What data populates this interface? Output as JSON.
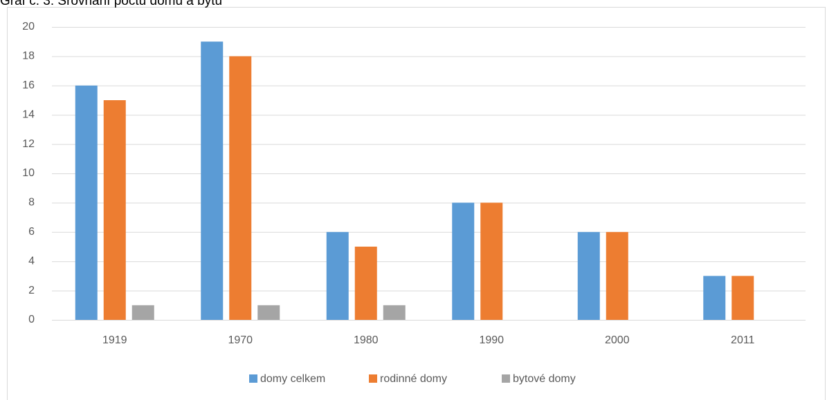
{
  "chart_data": {
    "type": "bar",
    "title": "Graf č. 3: Srovnání počtu domů a bytů",
    "categories": [
      "1919",
      "1970",
      "1980",
      "1990",
      "2000",
      "2011"
    ],
    "series": [
      {
        "name": "domy celkem",
        "color": "#5b9bd5",
        "values": [
          16,
          19,
          6,
          8,
          6,
          3
        ]
      },
      {
        "name": "rodinné domy",
        "color": "#ed7d31",
        "values": [
          15,
          18,
          5,
          8,
          6,
          3
        ]
      },
      {
        "name": "bytové domy",
        "color": "#a5a5a5",
        "values": [
          1,
          1,
          1,
          0,
          0,
          0
        ]
      }
    ],
    "ylim": [
      0,
      20
    ],
    "yticks": [
      0,
      2,
      4,
      6,
      8,
      10,
      12,
      14,
      16,
      18,
      20
    ],
    "grid": true,
    "legend": "bottom"
  }
}
